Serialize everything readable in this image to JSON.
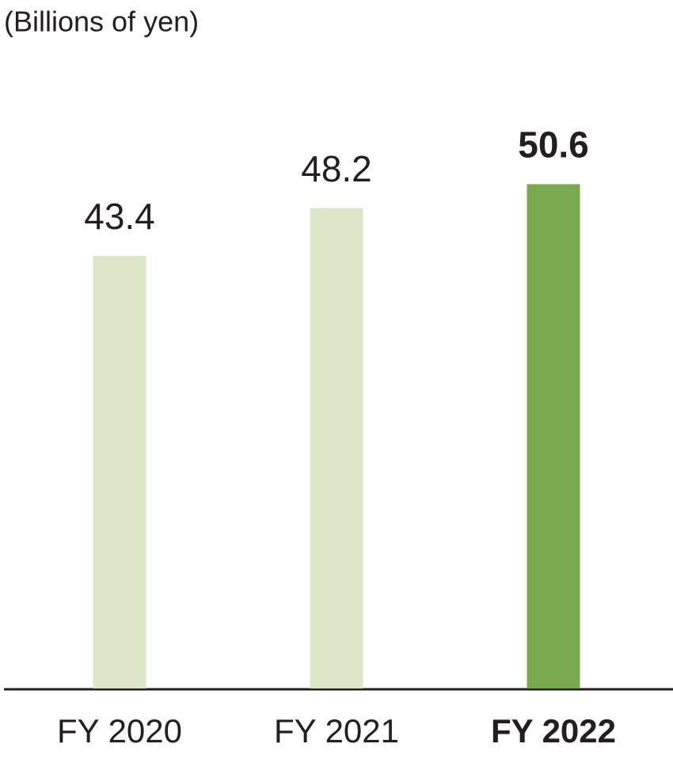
{
  "chart_data": {
    "type": "bar",
    "title": "(Billions of yen)",
    "categories": [
      "FY 2020",
      "FY 2021",
      "FY 2022"
    ],
    "values": [
      43.4,
      48.2,
      50.6
    ],
    "colors": [
      "#dde7c7",
      "#dde7c7",
      "#78a94e"
    ],
    "emphasis": [
      false,
      false,
      true
    ]
  }
}
